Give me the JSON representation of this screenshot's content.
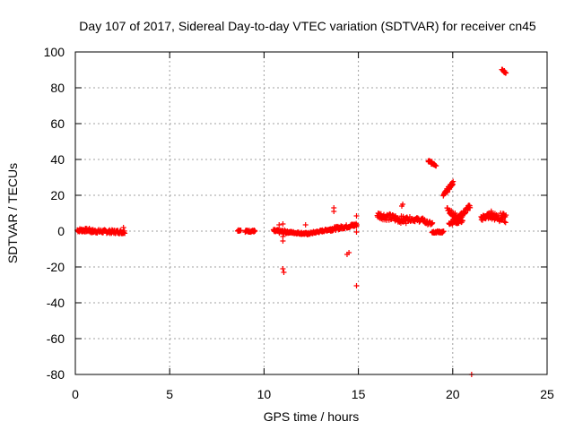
{
  "chart_data": {
    "type": "scatter",
    "title": "Day 107 of 2017, Sidereal Day-to-day VTEC variation (SDTVAR) for receiver cn45",
    "xlabel": "GPS time / hours",
    "ylabel": "SDTVAR / TECUs",
    "xlim": [
      0,
      25
    ],
    "ylim": [
      -80,
      100
    ],
    "xticks": [
      "0",
      "5",
      "10",
      "15",
      "20",
      "25"
    ],
    "yticks": [
      "-80",
      "-60",
      "-40",
      "-20",
      "0",
      "20",
      "40",
      "60",
      "80",
      "100"
    ],
    "grid": true,
    "marker": "+",
    "series_color": "#ff0000",
    "segments": [
      {
        "x0": 0.1,
        "x1": 0.8,
        "y0": 0.5,
        "y1": 0.5,
        "noise": 1.0,
        "step": 0.04
      },
      {
        "x0": 0.8,
        "x1": 2.6,
        "y0": 0.0,
        "y1": -0.5,
        "noise": 1.0,
        "step": 0.04
      },
      {
        "x0": 8.6,
        "x1": 8.75,
        "y0": 0.5,
        "y1": 0.5,
        "noise": 0.5,
        "step": 0.05
      },
      {
        "x0": 9.0,
        "x1": 9.5,
        "y0": 0.0,
        "y1": 0.0,
        "noise": 0.6,
        "step": 0.04
      },
      {
        "x0": 10.5,
        "x1": 11.2,
        "y0": 0.0,
        "y1": -0.5,
        "noise": 1.0,
        "step": 0.04
      },
      {
        "x0": 11.2,
        "x1": 12.3,
        "y0": -0.5,
        "y1": -1.5,
        "noise": 0.6,
        "step": 0.04
      },
      {
        "x0": 12.3,
        "x1": 13.5,
        "y0": -1.5,
        "y1": 1.0,
        "noise": 0.6,
        "step": 0.04
      },
      {
        "x0": 13.5,
        "x1": 14.9,
        "y0": 1.0,
        "y1": 3.5,
        "noise": 1.0,
        "step": 0.04
      },
      {
        "x0": 16.0,
        "x1": 17.5,
        "y0": 9.0,
        "y1": 6.0,
        "noise": 2.0,
        "step": 0.05
      },
      {
        "x0": 17.5,
        "x1": 18.5,
        "y0": 7.0,
        "y1": 6.0,
        "noise": 1.2,
        "step": 0.05
      },
      {
        "x0": 18.5,
        "x1": 18.9,
        "y0": 5.0,
        "y1": 4.0,
        "noise": 1.0,
        "step": 0.05
      },
      {
        "x0": 18.7,
        "x1": 19.1,
        "y0": 39.0,
        "y1": 37.0,
        "noise": 0.8,
        "step": 0.04
      },
      {
        "x0": 18.9,
        "x1": 19.5,
        "y0": -0.5,
        "y1": -0.5,
        "noise": 0.6,
        "step": 0.04
      },
      {
        "x0": 19.5,
        "x1": 20.0,
        "y0": 20.0,
        "y1": 27.0,
        "noise": 1.0,
        "step": 0.04
      },
      {
        "x0": 19.7,
        "x1": 20.2,
        "y0": 12.0,
        "y1": 8.0,
        "noise": 1.5,
        "step": 0.05
      },
      {
        "x0": 19.8,
        "x1": 20.5,
        "y0": 5.0,
        "y1": 6.0,
        "noise": 1.5,
        "step": 0.05
      },
      {
        "x0": 20.2,
        "x1": 20.9,
        "y0": 6.0,
        "y1": 14.0,
        "noise": 1.5,
        "step": 0.04
      },
      {
        "x0": 21.5,
        "x1": 22.0,
        "y0": 7.0,
        "y1": 9.0,
        "noise": 1.5,
        "step": 0.04
      },
      {
        "x0": 22.0,
        "x1": 22.8,
        "y0": 9.0,
        "y1": 7.0,
        "noise": 2.5,
        "step": 0.04
      },
      {
        "x0": 22.6,
        "x1": 22.8,
        "y0": 90.0,
        "y1": 88.5,
        "noise": 0.5,
        "step": 0.04
      }
    ],
    "points": [
      {
        "x": 2.55,
        "y": 2.0
      },
      {
        "x": 10.8,
        "y": 3.5
      },
      {
        "x": 11.0,
        "y": 4.0
      },
      {
        "x": 11.0,
        "y": -3.0
      },
      {
        "x": 11.0,
        "y": -5.5
      },
      {
        "x": 11.0,
        "y": -21.0
      },
      {
        "x": 11.05,
        "y": -23.0
      },
      {
        "x": 12.2,
        "y": 3.5
      },
      {
        "x": 13.7,
        "y": 11.0
      },
      {
        "x": 13.7,
        "y": 13.0
      },
      {
        "x": 14.4,
        "y": -13.0
      },
      {
        "x": 14.5,
        "y": -12.0
      },
      {
        "x": 14.9,
        "y": -30.5
      },
      {
        "x": 14.9,
        "y": 8.5
      },
      {
        "x": 14.9,
        "y": -0.5
      },
      {
        "x": 17.3,
        "y": 14.0
      },
      {
        "x": 17.35,
        "y": 15.0
      },
      {
        "x": 21.0,
        "y": -80.0
      }
    ]
  }
}
